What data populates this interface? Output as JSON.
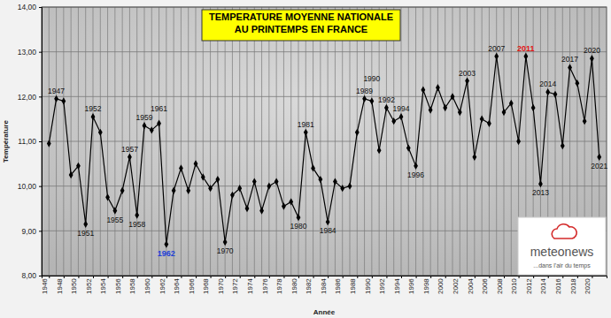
{
  "chart_data": {
    "type": "line",
    "title": [
      "TEMPERATURE MOYENNE NATIONALE",
      "AU PRINTEMPS EN FRANCE"
    ],
    "x_label": "Année",
    "y_label": "Température",
    "color": "#000000",
    "marker": "diamond",
    "grid": true,
    "x": [
      1946,
      1947,
      1948,
      1949,
      1950,
      1951,
      1952,
      1953,
      1954,
      1955,
      1956,
      1957,
      1958,
      1959,
      1960,
      1961,
      1962,
      1963,
      1964,
      1965,
      1966,
      1967,
      1968,
      1969,
      1970,
      1971,
      1972,
      1973,
      1974,
      1975,
      1976,
      1977,
      1978,
      1979,
      1980,
      1981,
      1982,
      1983,
      1984,
      1985,
      1986,
      1987,
      1988,
      1989,
      1990,
      1991,
      1992,
      1993,
      1994,
      1995,
      1996,
      1997,
      1998,
      1999,
      2000,
      2001,
      2002,
      2003,
      2004,
      2005,
      2006,
      2007,
      2008,
      2009,
      2010,
      2011,
      2012,
      2013,
      2014,
      2015,
      2016,
      2017,
      2018,
      2019,
      2020,
      2021
    ],
    "values": [
      10.95,
      11.95,
      11.9,
      10.25,
      10.45,
      9.15,
      11.55,
      11.2,
      9.75,
      9.45,
      9.9,
      10.65,
      9.35,
      11.35,
      11.25,
      11.4,
      8.7,
      9.9,
      10.4,
      9.9,
      10.5,
      10.2,
      9.95,
      10.15,
      8.75,
      9.8,
      9.95,
      9.5,
      10.1,
      9.45,
      10.0,
      10.1,
      9.55,
      9.65,
      9.3,
      11.2,
      10.4,
      10.15,
      9.2,
      10.1,
      9.95,
      10.0,
      11.2,
      11.95,
      11.9,
      10.8,
      11.75,
      11.45,
      11.55,
      10.85,
      10.45,
      12.15,
      11.7,
      12.2,
      11.75,
      12.0,
      11.65,
      12.35,
      10.65,
      11.5,
      11.4,
      12.9,
      11.65,
      11.85,
      11.0,
      12.9,
      11.75,
      10.05,
      12.1,
      12.05,
      10.9,
      12.65,
      12.3,
      11.45,
      12.85,
      10.65
    ],
    "xlim": [
      1945,
      2022
    ],
    "xticks": [
      1946,
      1948,
      1950,
      1952,
      1954,
      1956,
      1958,
      1960,
      1962,
      1964,
      1966,
      1968,
      1970,
      1972,
      1974,
      1976,
      1978,
      1980,
      1982,
      1984,
      1986,
      1988,
      1990,
      1992,
      1994,
      1996,
      1998,
      2000,
      2002,
      2004,
      2006,
      2008,
      2010,
      2012,
      2014,
      2016,
      2018,
      2020
    ],
    "ylim": [
      8,
      14
    ],
    "yticks": [
      {
        "value": 8,
        "label": "8,00"
      },
      {
        "value": 9,
        "label": "9,00"
      },
      {
        "value": 10,
        "label": "10,00"
      },
      {
        "value": 11,
        "label": "11,00"
      },
      {
        "value": 12,
        "label": "12,00"
      },
      {
        "value": 13,
        "label": "13,00"
      },
      {
        "value": 14,
        "label": "14,00"
      }
    ],
    "annotations": [
      {
        "text": "1947",
        "x": 1947
      },
      {
        "text": "1951",
        "x": 1951
      },
      {
        "text": "1952",
        "x": 1952
      },
      {
        "text": "1955",
        "x": 1955
      },
      {
        "text": "1957",
        "x": 1957
      },
      {
        "text": "1958",
        "x": 1958
      },
      {
        "text": "1959",
        "x": 1959
      },
      {
        "text": "1961",
        "x": 1961
      },
      {
        "text": "1962",
        "x": 1962,
        "color": "#1f3fd8"
      },
      {
        "text": "1970",
        "x": 1970
      },
      {
        "text": "1980",
        "x": 1980
      },
      {
        "text": "1981",
        "x": 1981
      },
      {
        "text": "1984",
        "x": 1984
      },
      {
        "text": "1989",
        "x": 1989
      },
      {
        "text": "1990",
        "x": 1990
      },
      {
        "text": "1992",
        "x": 1992
      },
      {
        "text": "1994",
        "x": 1994
      },
      {
        "text": "1996",
        "x": 1996
      },
      {
        "text": "2003",
        "x": 2003
      },
      {
        "text": "2007",
        "x": 2007
      },
      {
        "text": "2011",
        "x": 2011,
        "color": "#e01414"
      },
      {
        "text": "2013",
        "x": 2013
      },
      {
        "text": "2014",
        "x": 2014
      },
      {
        "text": "2017",
        "x": 2017
      },
      {
        "text": "2020",
        "x": 2020
      },
      {
        "text": "2021",
        "x": 2021
      }
    ],
    "source": {
      "name": "meteonews",
      "tagline": "...dans l'air du temps"
    }
  }
}
